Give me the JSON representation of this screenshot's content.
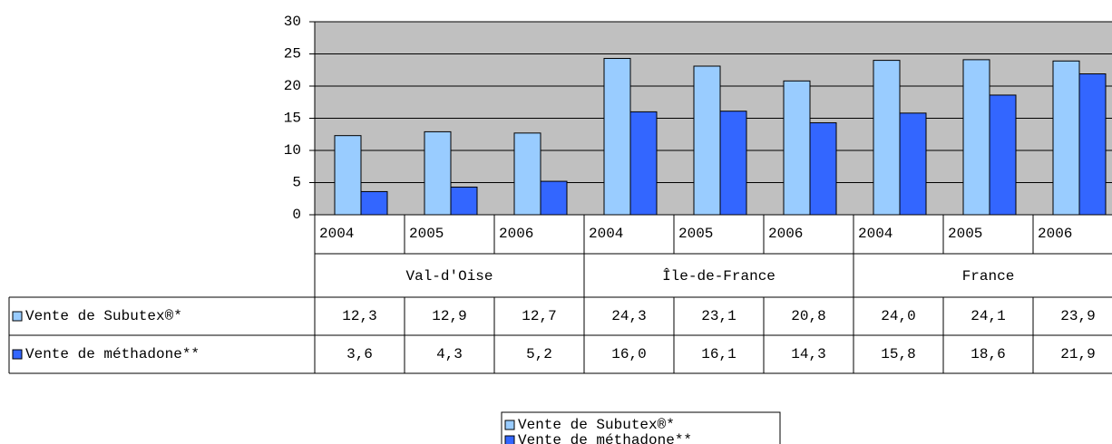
{
  "chart_data": {
    "type": "bar",
    "categories": [
      "2004",
      "2005",
      "2006",
      "2004",
      "2005",
      "2006",
      "2004",
      "2005",
      "2006"
    ],
    "groups": [
      "Val-d'Oise",
      "Île-de-France",
      "France"
    ],
    "series": [
      {
        "name": "Vente de Subutex®*",
        "color": "#99ccff",
        "values": [
          12.3,
          12.9,
          12.7,
          24.3,
          23.1,
          20.8,
          24.0,
          24.1,
          23.9
        ],
        "value_labels": [
          "12,3",
          "12,9",
          "12,7",
          "24,3",
          "23,1",
          "20,8",
          "24,0",
          "24,1",
          "23,9"
        ]
      },
      {
        "name": "Vente de méthadone**",
        "color": "#3366ff",
        "values": [
          3.6,
          4.3,
          5.2,
          16.0,
          16.1,
          14.3,
          15.8,
          18.6,
          21.9
        ],
        "value_labels": [
          "3,6",
          "4,3",
          "5,2",
          "16,0",
          "16,1",
          "14,3",
          "15,8",
          "18,6",
          "21,9"
        ]
      }
    ],
    "ylim": [
      0,
      30
    ],
    "yticks": [
      0,
      5,
      10,
      15,
      20,
      25,
      30
    ],
    "grid": true,
    "plot_background": "#c0c0c0"
  }
}
